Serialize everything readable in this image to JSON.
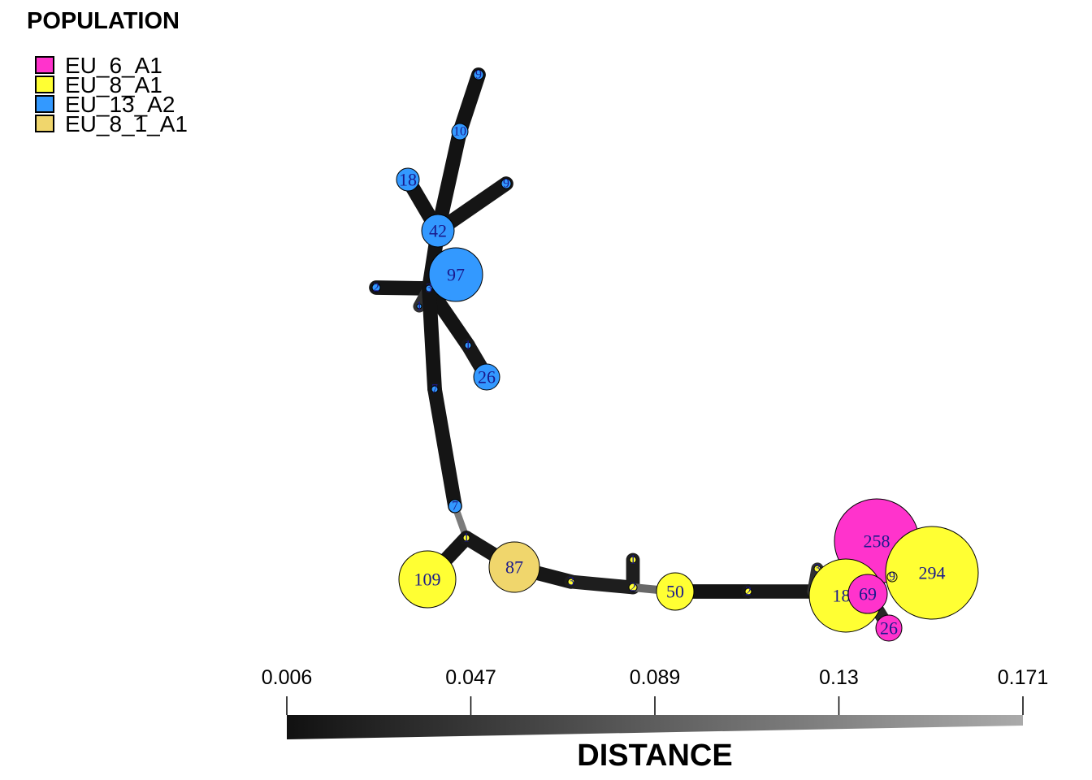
{
  "legend": {
    "title": "POPULATION",
    "items": [
      {
        "label": "EU_6_A1",
        "color": "#ff33cc"
      },
      {
        "label": "EU_8_A1",
        "color": "#ffff33"
      },
      {
        "label": "EU_13_A2",
        "color": "#3399ff"
      },
      {
        "label": "EU_8_1_A1",
        "color": "#f0d66c"
      }
    ]
  },
  "distance_scale": {
    "title": "DISTANCE",
    "ticks": [
      "0.006",
      "0.047",
      "0.089",
      "0.13",
      "0.171"
    ],
    "min": 0.006,
    "max": 0.171,
    "color_min": "#111111",
    "color_max": "#aaaaaa"
  },
  "network": {
    "nodes": [
      {
        "id": "n9top",
        "label": "9",
        "pop": "EU_13_A2",
        "count": 9
      },
      {
        "id": "n10",
        "label": "10",
        "pop": "EU_13_A2",
        "count": 10
      },
      {
        "id": "n18",
        "label": "18",
        "pop": "EU_13_A2",
        "count": 18
      },
      {
        "id": "n9r",
        "label": "9",
        "pop": "EU_13_A2",
        "count": 9
      },
      {
        "id": "n42",
        "label": "42",
        "pop": "EU_13_A2",
        "count": 42
      },
      {
        "id": "n97",
        "label": "97",
        "pop": "EU_13_A2",
        "count": 97
      },
      {
        "id": "n2l",
        "label": "2",
        "pop": "EU_13_A2",
        "count": 2
      },
      {
        "id": "n3",
        "label": "3",
        "pop": "EU_13_A2",
        "count": 3
      },
      {
        "id": "n1a",
        "label": "1",
        "pop": "EU_13_A2",
        "count": 1
      },
      {
        "id": "n1b",
        "label": "1",
        "pop": "EU_13_A2",
        "count": 1
      },
      {
        "id": "n26b",
        "label": "26",
        "pop": "EU_13_A2",
        "count": 26
      },
      {
        "id": "n7a",
        "label": "7",
        "pop": "EU_13_A2",
        "count": 7
      },
      {
        "id": "n7b",
        "label": "7",
        "pop": "EU_13_A2",
        "count": 7
      },
      {
        "id": "n1c",
        "label": "1",
        "pop": "EU_8_A1",
        "count": 1
      },
      {
        "id": "n109",
        "label": "109",
        "pop": "EU_8_A1",
        "count": 109
      },
      {
        "id": "n87",
        "label": "87",
        "pop": "EU_8_1_A1",
        "count": 87
      },
      {
        "id": "n3y",
        "label": "3",
        "pop": "EU_8_A1",
        "count": 3
      },
      {
        "id": "n1d",
        "label": "1",
        "pop": "EU_8_A1",
        "count": 1
      },
      {
        "id": "n2y",
        "label": "2",
        "pop": "EU_8_A1",
        "count": 2
      },
      {
        "id": "n50",
        "label": "50",
        "pop": "EU_8_A1",
        "count": 50
      },
      {
        "id": "n2z",
        "label": "2",
        "pop": "EU_8_A1",
        "count": 2
      },
      {
        "id": "n4",
        "label": "4",
        "pop": "EU_8_A1",
        "count": 4
      },
      {
        "id": "n3z",
        "label": "3",
        "pop": "EU_8_A1",
        "count": 3
      },
      {
        "id": "n258",
        "label": "258",
        "pop": "EU_6_A1",
        "count": 258
      },
      {
        "id": "n294",
        "label": "294",
        "pop": "EU_8_A1",
        "count": 294
      },
      {
        "id": "n9y",
        "label": "9",
        "pop": "EU_8_A1",
        "count": 9
      },
      {
        "id": "n185",
        "label": "185",
        "pop": "EU_8_A1",
        "count": 185
      },
      {
        "id": "n69",
        "label": "69",
        "pop": "EU_6_A1",
        "count": 69
      },
      {
        "id": "n26p",
        "label": "26",
        "pop": "EU_6_A1",
        "count": 26
      }
    ],
    "edges": [
      {
        "from": "n9top",
        "to": "n10",
        "distance": 0.008
      },
      {
        "from": "n10",
        "to": "n42",
        "distance": 0.008
      },
      {
        "from": "n18",
        "to": "n42",
        "distance": 0.008
      },
      {
        "from": "n9r",
        "to": "n42",
        "distance": 0.01
      },
      {
        "from": "n42",
        "to": "n3",
        "distance": 0.008
      },
      {
        "from": "n97",
        "to": "n3",
        "distance": 0.008
      },
      {
        "from": "n2l",
        "to": "n3",
        "distance": 0.01
      },
      {
        "from": "n3",
        "to": "n1a",
        "distance": 0.04
      },
      {
        "from": "n3",
        "to": "n1b",
        "distance": 0.008
      },
      {
        "from": "n1b",
        "to": "n26b",
        "distance": 0.012
      },
      {
        "from": "n3",
        "to": "n7a",
        "distance": 0.008
      },
      {
        "from": "n7a",
        "to": "n7b",
        "distance": 0.01
      },
      {
        "from": "n7b",
        "to": "n1c",
        "distance": 0.12
      },
      {
        "from": "n1c",
        "to": "n109",
        "distance": 0.01
      },
      {
        "from": "n1c",
        "to": "n87",
        "distance": 0.012
      },
      {
        "from": "n87",
        "to": "n3y",
        "distance": 0.012
      },
      {
        "from": "n3y",
        "to": "n2y",
        "distance": 0.02
      },
      {
        "from": "n1d",
        "to": "n2y",
        "distance": 0.02
      },
      {
        "from": "n2y",
        "to": "n50",
        "distance": 0.1
      },
      {
        "from": "n50",
        "to": "n2z",
        "distance": 0.008
      },
      {
        "from": "n2z",
        "to": "n4",
        "distance": 0.012
      },
      {
        "from": "n4",
        "to": "n3z",
        "distance": 0.04
      },
      {
        "from": "n185",
        "to": "n69",
        "distance": 0.03
      },
      {
        "from": "n69",
        "to": "n26p",
        "distance": 0.03
      }
    ]
  }
}
